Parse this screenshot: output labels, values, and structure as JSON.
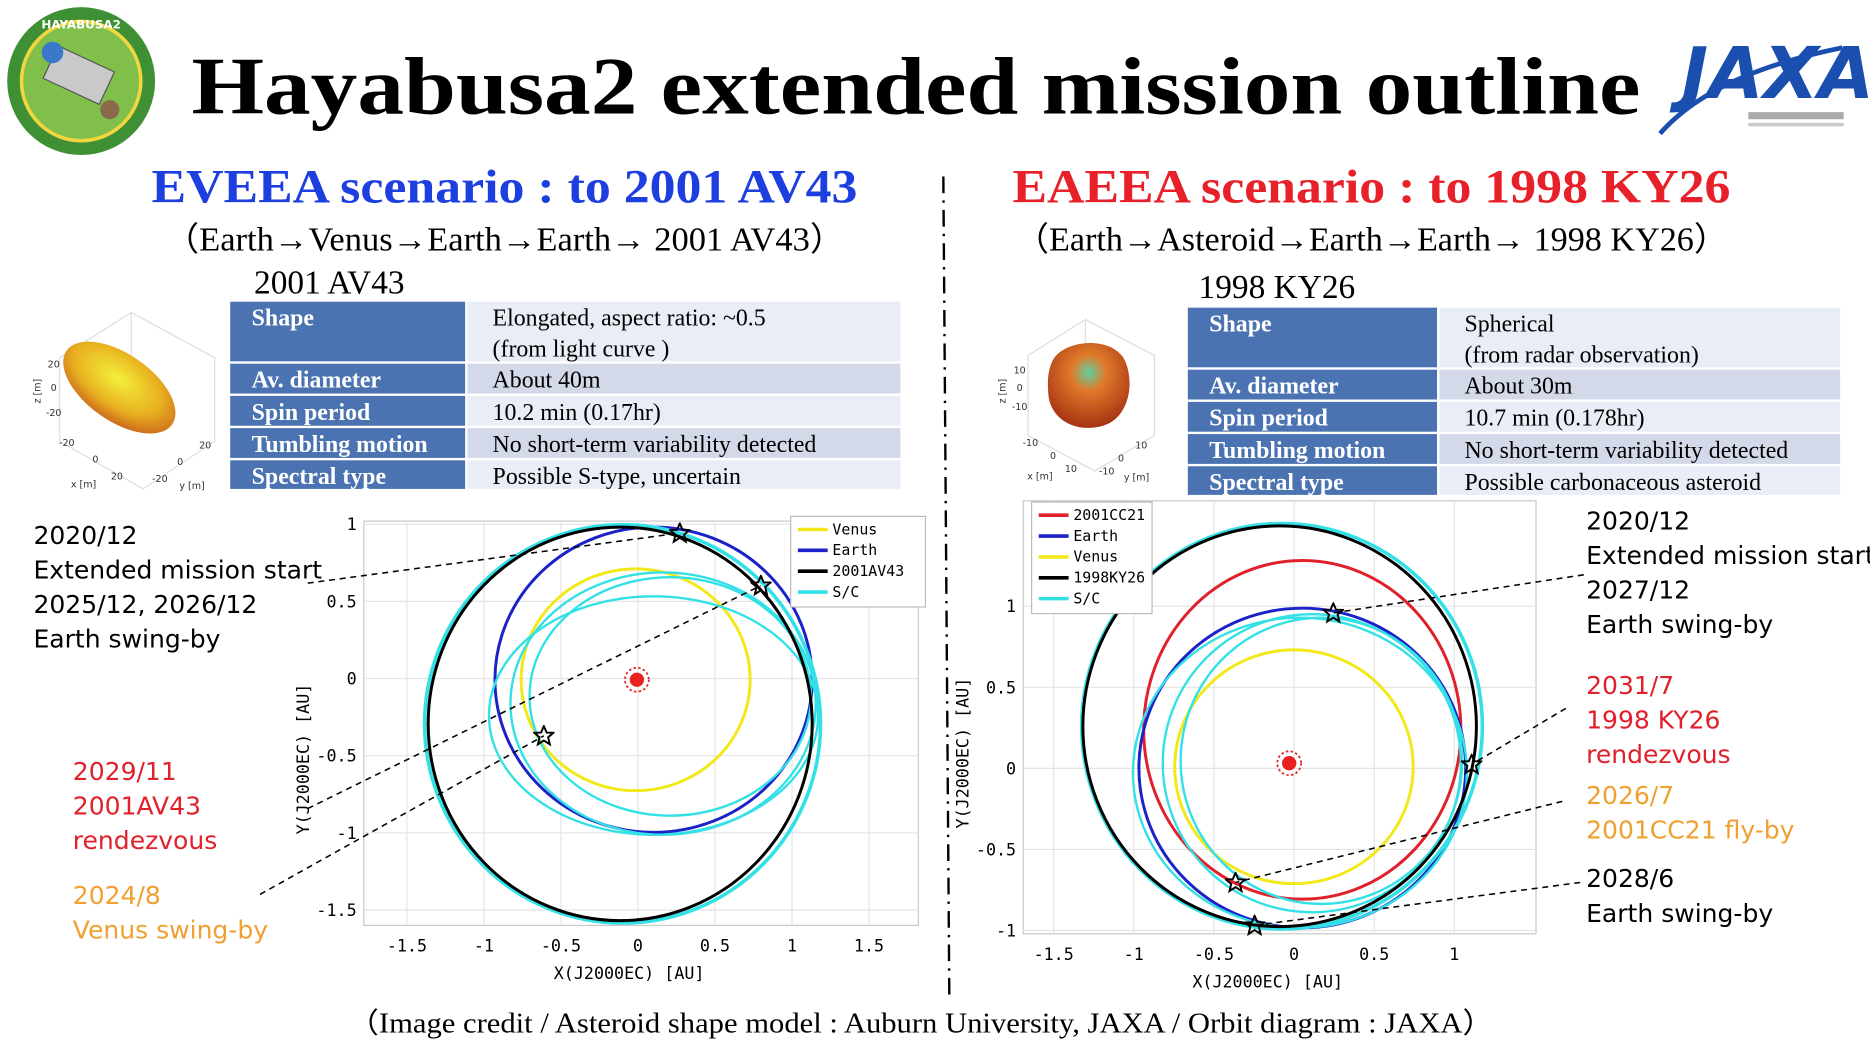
{
  "header": {
    "title": "Hayabusa2 extended mission outline",
    "logo_left": "HAYABUSA2",
    "logo_right": "JAXA"
  },
  "left": {
    "heading": "EVEEA scenario : to 2001 AV43",
    "route": "（Earth→Venus→Earth→Earth→ 2001 AV43）",
    "asteroid": "2001 AV43",
    "table": {
      "rows": [
        [
          "Shape",
          "Elongated, aspect ratio: ~0.5",
          "(from light curve )"
        ],
        [
          "Av. diameter",
          "About 40m"
        ],
        [
          "Spin period",
          "10.2 min (0.17hr)"
        ],
        [
          "Tumbling motion",
          "No short-term variability detected"
        ],
        [
          "Spectral type",
          "Possible S-type, uncertain"
        ]
      ]
    },
    "shape_plot": {
      "zlabel": "z [m]",
      "xlabel": "x [m]",
      "ylabel": "y [m]",
      "zticks": [
        20,
        0,
        -20
      ],
      "xticks": [
        -20,
        0,
        20
      ],
      "yticks": [
        20,
        0,
        -20
      ]
    },
    "orbit_plot": {
      "xlabel": "X(J2000EC) [AU]",
      "ylabel": "Y(J2000EC) [AU]",
      "xlim": [
        -1.78,
        1.82
      ],
      "ylim": [
        -1.6,
        1.02
      ],
      "xticks": [
        -1.5,
        -1,
        -0.5,
        0,
        0.5,
        1,
        1.5
      ],
      "yticks": [
        -1.5,
        -1,
        -0.5,
        0,
        0.5,
        1
      ],
      "grid": true,
      "legend": [
        {
          "name": "Venus",
          "color": "#f2e81a"
        },
        {
          "name": "Earth",
          "color": "#1a22c8"
        },
        {
          "name": "2001AV43",
          "color": "#000000"
        },
        {
          "name": "S/C",
          "color": "#33e0e6"
        }
      ]
    },
    "annotations": [
      {
        "color": "#000000",
        "lines": [
          "2020/12",
          "Extended mission start",
          "2025/12, 2026/12",
          "Earth swing-by"
        ]
      },
      {
        "color": "#e0202a",
        "lines": [
          "2029/11",
          "2001AV43",
          "rendezvous"
        ]
      },
      {
        "color": "#f0a030",
        "lines": [
          "2024/8",
          "Venus swing-by"
        ]
      }
    ]
  },
  "right": {
    "heading": "EAEEA scenario : to 1998 KY26",
    "route": "（Earth→Asteroid→Earth→Earth→ 1998 KY26）",
    "asteroid": "1998 KY26",
    "table": {
      "rows": [
        [
          "Shape",
          "Spherical",
          "(from radar observation)"
        ],
        [
          "Av. diameter",
          "About 30m"
        ],
        [
          "Spin period",
          "10.7 min (0.178hr)"
        ],
        [
          "Tumbling motion",
          "No short-term variability detected"
        ],
        [
          "Spectral type",
          "Possible carbonaceous asteroid"
        ]
      ]
    },
    "shape_plot": {
      "zlabel": "z [m]",
      "xlabel": "x [m]",
      "ylabel": "y [m]",
      "zticks": [
        10,
        0,
        -10
      ],
      "xticks": [
        -10,
        0,
        10
      ],
      "yticks": [
        10,
        0,
        -10
      ]
    },
    "orbit_plot": {
      "xlabel": "X(J2000EC) [AU]",
      "ylabel": "Y(J2000EC) [AU]",
      "xlim": [
        -1.69,
        1.51
      ],
      "ylim": [
        -1.02,
        1.65
      ],
      "xticks": [
        -1.5,
        -1,
        -0.5,
        0,
        0.5,
        1
      ],
      "yticks": [
        -1,
        -0.5,
        0,
        0.5,
        1
      ],
      "grid": true,
      "legend": [
        {
          "name": "2001CC21",
          "color": "#e0202a"
        },
        {
          "name": "Earth",
          "color": "#1a22c8"
        },
        {
          "name": "Venus",
          "color": "#f2e81a"
        },
        {
          "name": "1998KY26",
          "color": "#000000"
        },
        {
          "name": "S/C",
          "color": "#33e0e6"
        }
      ]
    },
    "annotations": [
      {
        "color": "#000000",
        "lines": [
          "2020/12",
          "Extended mission start",
          "2027/12",
          "Earth swing-by"
        ]
      },
      {
        "color": "#e0202a",
        "lines": [
          "2031/7",
          "1998 KY26",
          "rendezvous"
        ]
      },
      {
        "color": "#f0a030",
        "lines": [
          "2026/7",
          "2001CC21 fly-by"
        ]
      },
      {
        "color": "#000000",
        "lines": [
          "2028/6",
          "Earth swing-by"
        ]
      }
    ]
  },
  "credit": "（Image credit / Asteroid shape model : Auburn University, JAXA  /  Orbit diagram : JAXA）"
}
